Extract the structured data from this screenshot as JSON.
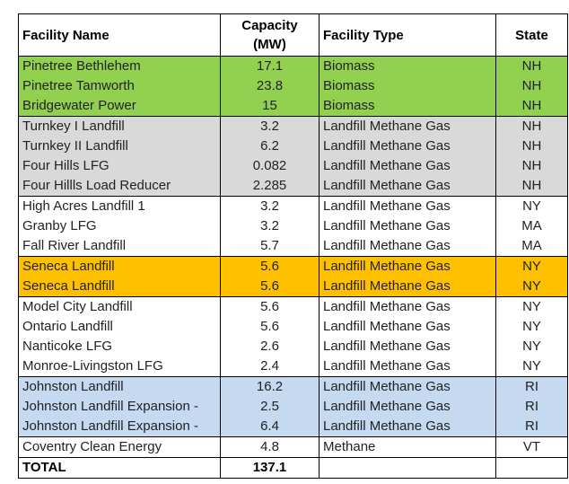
{
  "table": {
    "headers": {
      "name": "Facility Name",
      "capacity_line1": "Capacity",
      "capacity_line2": "(MW)",
      "type": "Facility Type",
      "state": "State"
    },
    "group_colors": {
      "green": "#92d050",
      "gray": "#d9d9d9",
      "white": "#ffffff",
      "orange": "#ffc000",
      "blue": "#c5d9f1"
    },
    "rows": [
      {
        "name": "Pinetree Bethlehem",
        "capacity": "17.1",
        "type": "Biomass",
        "state": "NH",
        "group": "green"
      },
      {
        "name": "Pinetree Tamworth",
        "capacity": "23.8",
        "type": "Biomass",
        "state": "NH",
        "group": "green"
      },
      {
        "name": "Bridgewater Power",
        "capacity": "15",
        "type": "Biomass",
        "state": "NH",
        "group": "green"
      },
      {
        "name": "Turnkey I Landfill",
        "capacity": "3.2",
        "type": "Landfill Methane Gas",
        "state": "NH",
        "group": "gray"
      },
      {
        "name": "Turnkey II Landfill",
        "capacity": "6.2",
        "type": "Landfill Methane Gas",
        "state": "NH",
        "group": "gray"
      },
      {
        "name": "Four Hills LFG",
        "capacity": "0.082",
        "type": "Landfill Methane Gas",
        "state": "NH",
        "group": "gray"
      },
      {
        "name": "Four Hillls Load Reducer",
        "capacity": "2.285",
        "type": "Landfill Methane Gas",
        "state": "NH",
        "group": "gray"
      },
      {
        "name": "High Acres Landfill 1",
        "capacity": "3.2",
        "type": "Landfill Methane Gas",
        "state": "NY",
        "group": "white"
      },
      {
        "name": "Granby LFG",
        "capacity": "3.2",
        "type": "Landfill Methane Gas",
        "state": "MA",
        "group": "white"
      },
      {
        "name": "Fall River Landfill",
        "capacity": "5.7",
        "type": "Landfill Methane Gas",
        "state": "MA",
        "group": "white"
      },
      {
        "name": "Seneca Landfill",
        "capacity": "5.6",
        "type": "Landfill Methane Gas",
        "state": "NY",
        "group": "orange"
      },
      {
        "name": "Seneca Landfill",
        "capacity": "5.6",
        "type": "Landfill Methane Gas",
        "state": "NY",
        "group": "orange"
      },
      {
        "name": "Model City Landfill",
        "capacity": "5.6",
        "type": "Landfill Methane Gas",
        "state": "NY",
        "group": "white"
      },
      {
        "name": "Ontario Landfill",
        "capacity": "5.6",
        "type": "Landfill Methane Gas",
        "state": "NY",
        "group": "white"
      },
      {
        "name": "Nanticoke LFG",
        "capacity": "2.6",
        "type": "Landfill Methane Gas",
        "state": "NY",
        "group": "white"
      },
      {
        "name": "Monroe-Livingston LFG",
        "capacity": "2.4",
        "type": "Landfill Methane Gas",
        "state": "NY",
        "group": "white"
      },
      {
        "name": "Johnston Landfill",
        "capacity": "16.2",
        "type": "Landfill Methane Gas",
        "state": "RI",
        "group": "blue"
      },
      {
        "name": "Johnston Landfill Expansion -",
        "capacity": "2.5",
        "type": "Landfill Methane Gas",
        "state": "RI",
        "group": "blue"
      },
      {
        "name": "Johnston Landfill Expansion -",
        "capacity": "6.4",
        "type": "Landfill Methane Gas",
        "state": "RI",
        "group": "blue"
      },
      {
        "name": "Coventry Clean Energy",
        "capacity": "4.8",
        "type": "Methane",
        "state": "VT",
        "group": "white"
      }
    ],
    "total": {
      "label": "TOTAL",
      "capacity": "137.1"
    }
  }
}
